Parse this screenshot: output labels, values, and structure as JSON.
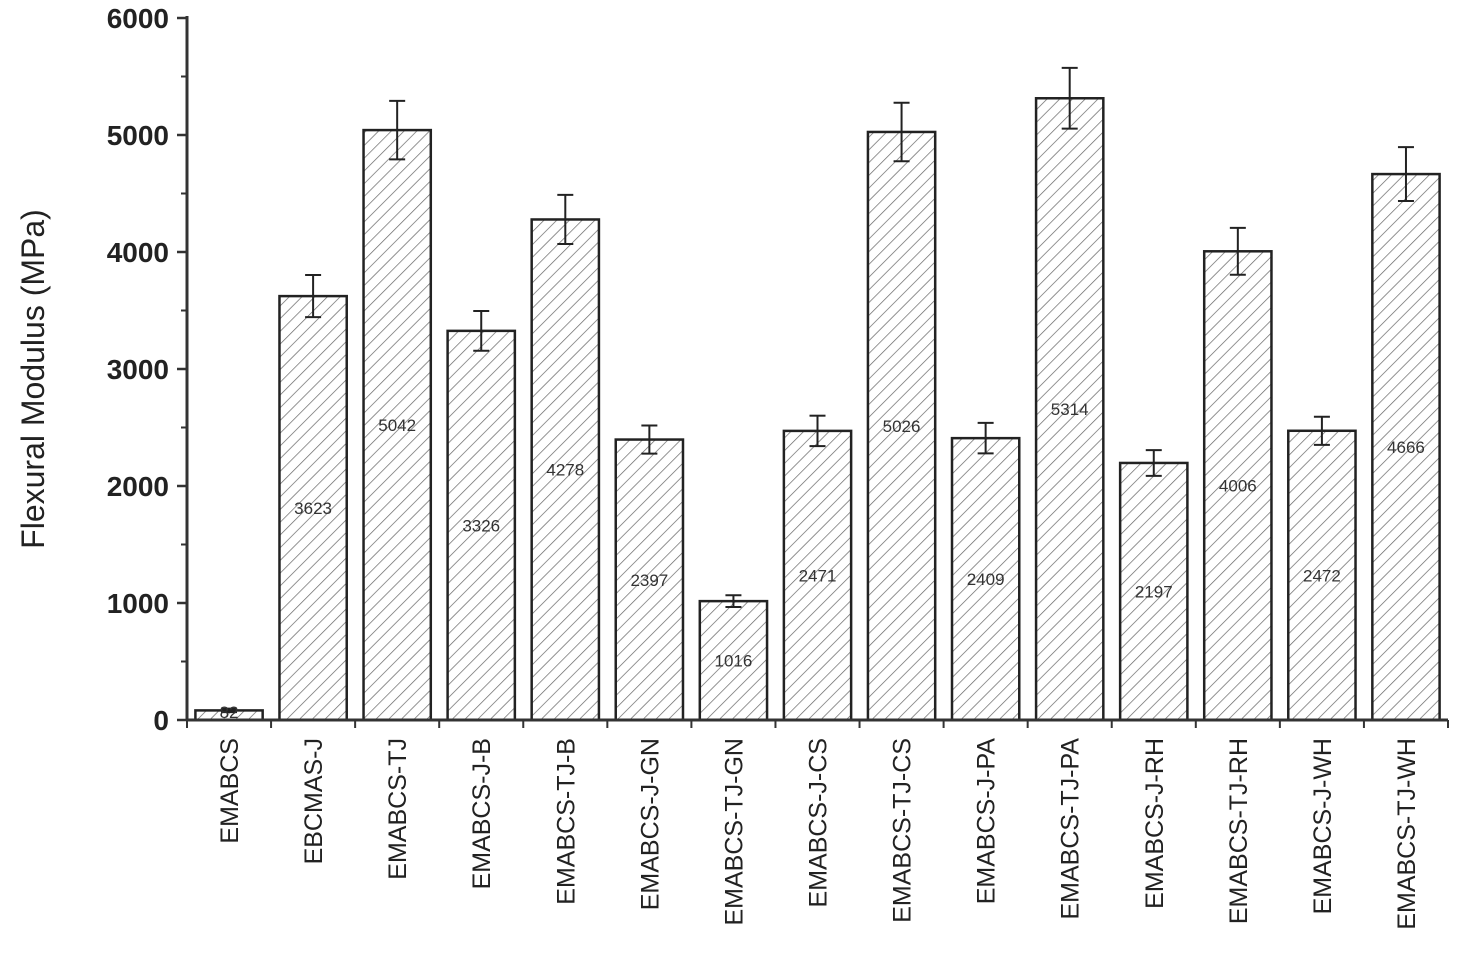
{
  "chart_data": {
    "type": "bar",
    "title": "",
    "xlabel": "",
    "ylabel": "Flexural Modulus (MPa)",
    "ylim": [
      0,
      6000
    ],
    "yticks": [
      0,
      1000,
      2000,
      3000,
      4000,
      5000,
      6000
    ],
    "categories": [
      "EMABCS",
      "EBCMAS-J",
      "EMABCS-TJ",
      "EMABCS-J-B",
      "EMABCS-TJ-B",
      "EMABCS-J-GN",
      "EMABCS-TJ-GN",
      "EMABCS-J-CS",
      "EMABCS-TJ-CS",
      "EMABCS-J-PA",
      "EMABCS-TJ-PA",
      "EMABCS-J-RH",
      "EMABCS-TJ-RH",
      "EMABCS-J-WH",
      "EMABCS-TJ-WH"
    ],
    "values": [
      82,
      3623,
      5042,
      3326,
      4278,
      2397,
      1016,
      2471,
      5026,
      2409,
      5314,
      2197,
      4006,
      2472,
      4666
    ],
    "data_labels": [
      "82",
      "3623",
      "5042",
      "3326",
      "4278",
      "2397",
      "1016",
      "2471",
      "5026",
      "2409",
      "5314",
      "2197",
      "4006",
      "2472",
      "4666"
    ],
    "errors": [
      15,
      180,
      250,
      170,
      210,
      120,
      50,
      130,
      250,
      130,
      260,
      110,
      200,
      120,
      230
    ],
    "grid": false,
    "legend": "none",
    "bar_fill": "hatched",
    "colors": {
      "bar_stroke": "#222222",
      "hatch": "#555555",
      "axis": "#333333"
    }
  }
}
